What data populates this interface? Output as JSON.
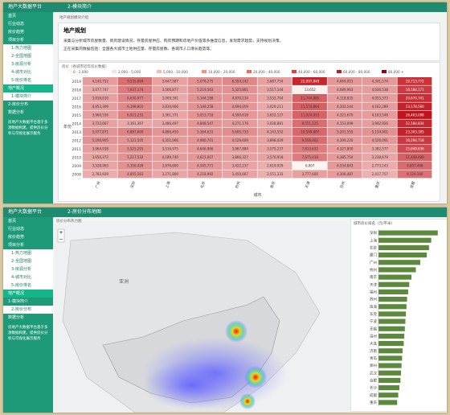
{
  "top": {
    "app_title": "地产大数据平台",
    "tab": "2-模块简介",
    "menu": [
      "首页",
      "行业动态",
      "房价趋势",
      "项目分析",
      "1-热力地图",
      "2-全国地图",
      "3-房源分析",
      "4-城市对比",
      "5-房价排名",
      "地产概况",
      "1-模块简介",
      "2-房价分布",
      "数据分析"
    ],
    "footer": "房地产大数据平台基于多源数据构建，提供房价分析与可视化展示服务",
    "crumb": "地产规划模块介绍",
    "card_title": "地产规划",
    "desc1": "采集与分析城市房屋数量、新房建设情况、存量房屋供应、购房预期和房地产价值等多维度信息，发现需求趋势，支持规划决策。",
    "desc2": "正在采集的数据包括：全国各大城市土地供应量、存量房屋数、各城市人口增长趋势等。",
    "heat_caption": "房价（各城市近年房价数据）",
    "legend": [
      "0 - 2,000",
      "2,000 - 5,000",
      "5,000 - 10,000",
      "10,000 - 20,000",
      "20,000 - 40,000",
      "40,000 - 60,000",
      "60,000 - 80,000",
      "80,000 +"
    ],
    "legend_colors": [
      "#fff5f0",
      "#fee0d2",
      "#fcbba1",
      "#fc9272",
      "#fb6a4a",
      "#ef3b2c",
      "#cb181d",
      "#99000d"
    ],
    "color_range": [
      "#fff5f0",
      "#c0141c"
    ],
    "y_label": "年份",
    "x_label": "城市",
    "years": [
      "2019",
      "2018",
      "2017",
      "2016",
      "2015",
      "2014",
      "2013",
      "2012",
      "2011",
      "2010",
      "2009",
      "2008"
    ],
    "cities": [
      "广州",
      "深圳",
      "上海",
      "北京",
      "杭州",
      "南京",
      "天津",
      "苏州",
      "重庆",
      "成都"
    ],
    "cells": [
      [
        "4,140,752",
        "9,535,894",
        "3,647,587",
        "5,078,275",
        "6,354,142",
        "3,687,754",
        "22,097,849",
        "4,669,001",
        "4,341,574",
        "19,713,772"
      ],
      [
        "3,077,747",
        "7,937,174",
        "3,566,877",
        "5,219,563",
        "5,325,861",
        "3,517,144",
        "13,652",
        "4,089,963",
        "4,036,538",
        "18,184,171"
      ],
      [
        "3,916,610",
        "6,630,977",
        "3,009,391",
        "5,144,188",
        "4,870,134",
        "3,532,704",
        "11,744,885",
        "4,118,835",
        "4,053,373",
        "20,670,741"
      ],
      [
        "4,053,309",
        "6,198,801",
        "3,810,906",
        "5,149,258",
        "4,694,059",
        "3,029,211",
        "11,574,864",
        "4,302,544",
        "4,162,289",
        "23,178,560"
      ],
      [
        "3,960,556",
        "6,921,231",
        "3,361,371",
        "5,053,718",
        "4,590,618",
        "3,652,127",
        "11,024,933",
        "4,321,670",
        "4,183,548",
        "26,463,098"
      ],
      [
        "3,722,667",
        "3,161,367",
        "3,486,497",
        "4,848,547",
        "4,271,176",
        "3,028,881",
        "9,551,125",
        "4,153,099",
        "3,942,926",
        "22,184,834"
      ],
      [
        "5,077,871",
        "6,887,600",
        "4,886,450",
        "5,364,631",
        "5,605,733",
        "4,143,552",
        "10,599,807",
        "5,201,555",
        "5,134,901",
        "23,303,395"
      ],
      [
        "5,190,905",
        "5,121,505",
        "4,351,066",
        "4,980,701",
        "4,529,609",
        "3,898,429",
        "9,556,402",
        "4,309,220",
        "4,526,091",
        "18,294,718"
      ],
      [
        "3,964,938",
        "5,525,291",
        "3,516,975",
        "4,646,966",
        "3,967,884",
        "3,575,237",
        "7,813,632",
        "4,327,800",
        "3,382,577",
        "15,649,636"
      ],
      [
        "3,650,372",
        "5,217,532",
        "4,189,740",
        "4,621,007",
        "3,866,327",
        "3,570,918",
        "7,675,418",
        "4,385,754",
        "3,238,679",
        "11,408,489"
      ],
      [
        "3,528,963",
        "5,356,428",
        "3,976,600",
        "4,595,771",
        "3,422,237",
        "2,619,929",
        "6,807",
        "4,554,843",
        "2,773,143",
        "9,807,496"
      ],
      [
        "2,783,929",
        "4,855,563",
        "3,271,800",
        "4,218,992",
        "3,450,667",
        "2,551,333",
        "3,777,600",
        "4,306,487",
        "2,417,757",
        "9,120,160"
      ]
    ]
  },
  "bottom": {
    "app_title": "地产大数据平台",
    "tab": "2-房价分布地图",
    "menu": [
      "首页",
      "行业动态",
      "房价趋势",
      "项目分析",
      "1-热力地图",
      "2-全国地图",
      "3-房源分析",
      "4-城市对比",
      "5-房价排名",
      "地产概况",
      "1-模块简介",
      "2-房价分布",
      "数据分析"
    ],
    "footer": "房地产大数据平台基于多源数据构建，提供房价分析与可视化展示服务",
    "map_caption": "房价分布热力图",
    "map_label": "亚洲"
  },
  "chart_data": {
    "type": "hbar",
    "title": "城市房价排名（元/平米）",
    "color": "#5b8a3c",
    "categories": [
      "深圳",
      "上海",
      "北京",
      "厦门",
      "广州",
      "杭州",
      "南京",
      "天津",
      "福州",
      "苏州",
      "珠海",
      "东莞",
      "宁波",
      "无锡",
      "温州",
      "大连",
      "济南",
      "青岛",
      "郑州",
      "武汉",
      "合肥",
      "长沙",
      "成都",
      "重庆"
    ],
    "values": [
      54000,
      48000,
      46000,
      44000,
      38000,
      34000,
      30000,
      28000,
      27000,
      26000,
      25500,
      25000,
      24500,
      24000,
      23500,
      23000,
      22000,
      21500,
      21000,
      20500,
      20000,
      19000,
      18000,
      17000
    ],
    "xlim": [
      0,
      60000
    ]
  }
}
